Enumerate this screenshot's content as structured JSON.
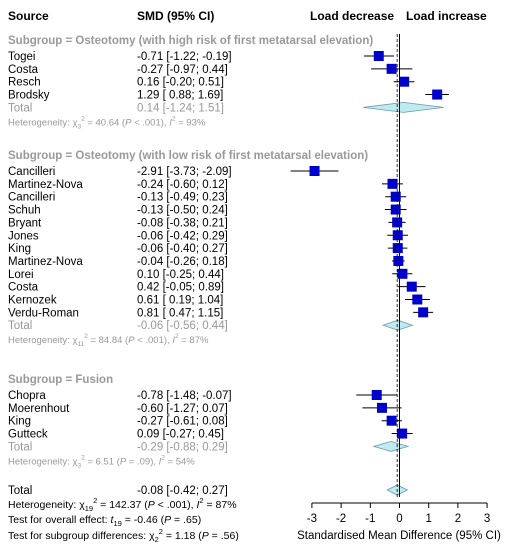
{
  "header": {
    "source": "Source",
    "smd": "SMD (95% CI)",
    "load_decrease": "Load decrease",
    "load_increase": "Load increase"
  },
  "colors": {
    "marker": "#0000cc",
    "diamond_fill": "#bfeaf0",
    "diamond_stroke": "#6a9aa8",
    "grey_text": "#999999"
  },
  "chart_data": {
    "type": "forest",
    "xlabel": "Standardised Mean Difference (95% CI)",
    "xlim": [
      -3,
      3
    ],
    "xticks": [
      "-3",
      "-2",
      "-1",
      "0",
      "1",
      "2",
      "3"
    ],
    "reference_lines": {
      "zero": 0,
      "overall": -0.08
    },
    "subgroups": [
      {
        "title": "Subgroup = Osteotomy (with high risk of first metatarsal elevation)",
        "studies": [
          {
            "name": "Togei",
            "ci_text": "-0.71 [-1.22; -0.19]",
            "smd": -0.71,
            "lower": -1.22,
            "upper": -0.19
          },
          {
            "name": "Costa",
            "ci_text": "-0.27 [-0.97;  0.44]",
            "smd": -0.27,
            "lower": -0.97,
            "upper": 0.44
          },
          {
            "name": "Resch",
            "ci_text": " 0.16 [-0.20;  0.51]",
            "smd": 0.16,
            "lower": -0.2,
            "upper": 0.51
          },
          {
            "name": "Brodsky",
            "ci_text": " 1.29 [ 0.88;  1.69]",
            "smd": 1.29,
            "lower": 0.88,
            "upper": 1.69
          }
        ],
        "total": {
          "label": "Total",
          "ci_text": " 0.14 [-1.24;  1.51]",
          "smd": 0.14,
          "lower": -1.24,
          "upper": 1.51
        },
        "het": {
          "chi_sub": "3",
          "chi_val": " = 40.64 (",
          "p_val": " < .001), ",
          "i2_val": " = 93%"
        }
      },
      {
        "title": "Subgroup = Osteotomy (with low risk of first metatarsal elevation)",
        "studies": [
          {
            "name": "Cancilleri",
            "ci_text": "-2.91 [-3.73; -2.09]",
            "smd": -2.91,
            "lower": -3.73,
            "upper": -2.09
          },
          {
            "name": "Martinez-Nova",
            "ci_text": "-0.24 [-0.60;  0.12]",
            "smd": -0.24,
            "lower": -0.6,
            "upper": 0.12
          },
          {
            "name": "Cancilleri",
            "ci_text": "-0.13 [-0.49;  0.23]",
            "smd": -0.13,
            "lower": -0.49,
            "upper": 0.23
          },
          {
            "name": "Schuh",
            "ci_text": "-0.13 [-0.50;  0.24]",
            "smd": -0.13,
            "lower": -0.5,
            "upper": 0.24
          },
          {
            "name": "Bryant",
            "ci_text": "-0.08 [-0.38;  0.21]",
            "smd": -0.08,
            "lower": -0.38,
            "upper": 0.21
          },
          {
            "name": "Jones",
            "ci_text": "-0.06 [-0.42;  0.29]",
            "smd": -0.06,
            "lower": -0.42,
            "upper": 0.29
          },
          {
            "name": "King",
            "ci_text": "-0.06 [-0.40;  0.27]",
            "smd": -0.06,
            "lower": -0.4,
            "upper": 0.27
          },
          {
            "name": "Martinez-Nova",
            "ci_text": "-0.04 [-0.26;  0.18]",
            "smd": -0.04,
            "lower": -0.26,
            "upper": 0.18
          },
          {
            "name": "Lorei",
            "ci_text": " 0.10 [-0.25;  0.44]",
            "smd": 0.1,
            "lower": -0.25,
            "upper": 0.44
          },
          {
            "name": "Costa",
            "ci_text": " 0.42 [-0.05;  0.89]",
            "smd": 0.42,
            "lower": -0.05,
            "upper": 0.89
          },
          {
            "name": "Kernozek",
            "ci_text": " 0.61 [ 0.19;  1.04]",
            "smd": 0.61,
            "lower": 0.19,
            "upper": 1.04
          },
          {
            "name": "Verdu-Roman",
            "ci_text": " 0.81 [ 0.47;  1.15]",
            "smd": 0.81,
            "lower": 0.47,
            "upper": 1.15
          }
        ],
        "total": {
          "label": "Total",
          "ci_text": "-0.06 [-0.56;  0.44]",
          "smd": -0.06,
          "lower": -0.56,
          "upper": 0.44
        },
        "het": {
          "chi_sub": "11",
          "chi_val": " = 84.84 (",
          "p_val": " < .001), ",
          "i2_val": " = 87%"
        }
      },
      {
        "title": "Subgroup = Fusion",
        "studies": [
          {
            "name": "Chopra",
            "ci_text": "-0.78 [-1.48; -0.07]",
            "smd": -0.78,
            "lower": -1.48,
            "upper": -0.07
          },
          {
            "name": "Moerenhout",
            "ci_text": "-0.60 [-1.27;  0.07]",
            "smd": -0.6,
            "lower": -1.27,
            "upper": 0.07
          },
          {
            "name": "King",
            "ci_text": "-0.27 [-0.61;  0.08]",
            "smd": -0.27,
            "lower": -0.61,
            "upper": 0.08
          },
          {
            "name": "Gutteck",
            "ci_text": " 0.09 [-0.27;  0.45]",
            "smd": 0.09,
            "lower": -0.27,
            "upper": 0.45
          }
        ],
        "total": {
          "label": "Total",
          "ci_text": "-0.29 [-0.88;  0.29]",
          "smd": -0.29,
          "lower": -0.88,
          "upper": 0.29
        },
        "het": {
          "chi_sub": "3",
          "chi_val": " = 6.51 (",
          "p_val": " = .09), ",
          "i2_val": " = 54%"
        }
      }
    ],
    "overall": {
      "label": "Total",
      "ci_text": "-0.08 [-0.42;  0.27]",
      "smd": -0.08,
      "lower": -0.42,
      "upper": 0.27
    },
    "footer": {
      "heterogeneity": {
        "label": "Heterogeneity: ",
        "chi_sub": "19",
        "chi_val": " = 142.37 (",
        "p_val": " < .001), ",
        "i2_val": " = 87%"
      },
      "overall_effect": {
        "label": "Test for overall effect: ",
        "t_sub": "19",
        "t_val": " = -0.46 (",
        "p_val": " = .65)"
      },
      "subgroup_diff": {
        "label": "Test for subgroup differences: ",
        "chi_sub": "2",
        "chi_val": " = 1.18 (",
        "p_val": " = .56)"
      }
    }
  }
}
